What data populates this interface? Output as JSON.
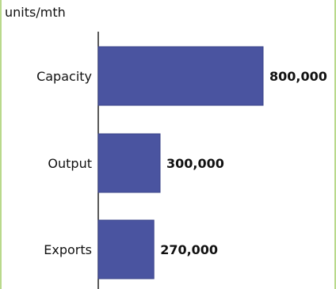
{
  "chart_data": {
    "type": "bar",
    "orientation": "horizontal",
    "unit_label": "units/mth",
    "categories": [
      "Capacity",
      "Output",
      "Exports"
    ],
    "values": [
      800000,
      300000,
      270000
    ],
    "value_labels": [
      "800,000",
      "300,000",
      "270,000"
    ],
    "title": "",
    "xlabel": "",
    "ylabel": "",
    "xlim": [
      0,
      800000
    ],
    "grid": false,
    "legend": "none"
  },
  "colors": {
    "bar": "#4a54a0",
    "bar_edge": "#3b448a",
    "axis": "#222222",
    "border": "#b9d98c",
    "background": "#ffffff",
    "outer": "#f2f8e4"
  }
}
